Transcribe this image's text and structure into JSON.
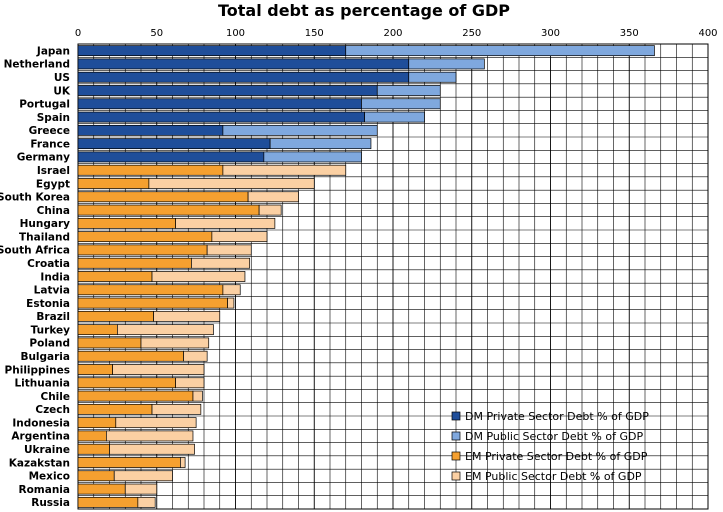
{
  "chart_data": {
    "type": "bar",
    "orientation": "horizontal",
    "stacked": true,
    "title": "Total debt as percentage of GDP",
    "xlim": [
      0,
      400
    ],
    "xticks": [
      0,
      50,
      100,
      150,
      200,
      250,
      300,
      350,
      400
    ],
    "xaxis_position": "top",
    "grid": true,
    "legend_position": "bottom-right",
    "categories": [
      "Japan",
      "Netherland",
      "US",
      "UK",
      "Portugal",
      "Spain",
      "Greece",
      "France",
      "Germany",
      "Israel",
      "Egypt",
      "South Korea",
      "China",
      "Hungary",
      "Thailand",
      "South Africa",
      "Croatia",
      "India",
      "Latvia",
      "Estonia",
      "Brazil",
      "Turkey",
      "Poland",
      "Bulgaria",
      "Philippines",
      "Lithuania",
      "Chile",
      "Czech",
      "Indonesia",
      "Argentina",
      "Ukraine",
      "Kazakstan",
      "Mexico",
      "Romania",
      "Russia"
    ],
    "groups": [
      "DM",
      "DM",
      "DM",
      "DM",
      "DM",
      "DM",
      "DM",
      "DM",
      "DM",
      "EM",
      "EM",
      "EM",
      "EM",
      "EM",
      "EM",
      "EM",
      "EM",
      "EM",
      "EM",
      "EM",
      "EM",
      "EM",
      "EM",
      "EM",
      "EM",
      "EM",
      "EM",
      "EM",
      "EM",
      "EM",
      "EM",
      "EM",
      "EM",
      "EM",
      "EM"
    ],
    "private": [
      170,
      210,
      210,
      190,
      180,
      182,
      92,
      122,
      118,
      92,
      45,
      108,
      115,
      62,
      85,
      82,
      72,
      47,
      92,
      95,
      48,
      25,
      40,
      67,
      22,
      62,
      73,
      47,
      24,
      18,
      20,
      65,
      23,
      30,
      38
    ],
    "public": [
      196,
      48,
      30,
      40,
      50,
      38,
      98,
      64,
      62,
      78,
      105,
      32,
      14,
      63,
      35,
      28,
      37,
      59,
      11,
      4,
      42,
      61,
      43,
      15,
      58,
      18,
      6,
      31,
      51,
      55,
      54,
      3,
      37,
      20,
      11
    ],
    "legend": [
      {
        "label": "DM Private Sector Debt % of GDP",
        "color": "#1F4E9A"
      },
      {
        "label": "DM Public Sector Debt % of GDP",
        "color": "#7FA8DE"
      },
      {
        "label": "EM Private Sector Debt % of GDP",
        "color": "#F5A030"
      },
      {
        "label": "EM Public Sector Debt % of GDP",
        "color": "#FBD0A3"
      }
    ]
  }
}
